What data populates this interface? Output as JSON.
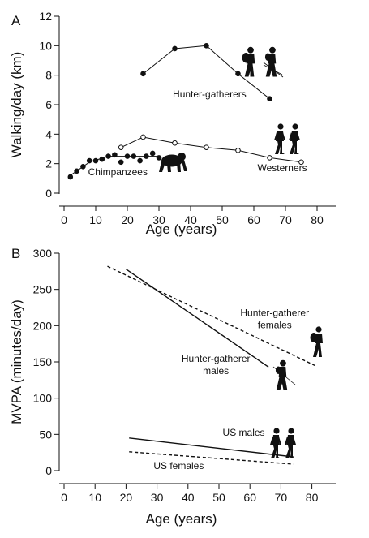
{
  "figure": {
    "panel_a_label": "A",
    "panel_b_label": "B"
  },
  "colors": {
    "ink": "#111111",
    "background": "#ffffff"
  },
  "chart_data": [
    {
      "type": "line",
      "panel": "A",
      "xlabel": "Age (years)",
      "ylabel": "Walking/day (km)",
      "xlim": [
        0,
        85
      ],
      "ylim": [
        0,
        12
      ],
      "xticks": [
        0,
        10,
        20,
        30,
        40,
        50,
        60,
        70,
        80
      ],
      "yticks": [
        0,
        2,
        4,
        6,
        8,
        10,
        12
      ],
      "grid": false,
      "series": [
        {
          "name": "Hunter-gatherers",
          "marker": "filled-circle",
          "line": "solid",
          "points": [
            [
              25,
              8.1
            ],
            [
              35,
              9.8
            ],
            [
              45,
              10.0
            ],
            [
              55,
              8.1
            ],
            [
              65,
              6.4
            ]
          ]
        },
        {
          "name": "Westerners",
          "marker": "open-circle",
          "line": "solid",
          "points": [
            [
              18,
              3.1
            ],
            [
              25,
              3.8
            ],
            [
              35,
              3.4
            ],
            [
              45,
              3.1
            ],
            [
              55,
              2.9
            ],
            [
              65,
              2.4
            ],
            [
              75,
              2.1
            ]
          ]
        },
        {
          "name": "Chimpanzees",
          "marker": "filled-circle",
          "line": "solid",
          "points": [
            [
              2,
              1.1
            ],
            [
              4,
              1.5
            ],
            [
              6,
              1.8
            ],
            [
              8,
              2.2
            ],
            [
              10,
              2.2
            ],
            [
              12,
              2.3
            ],
            [
              14,
              2.5
            ],
            [
              16,
              2.6
            ],
            [
              18,
              2.1
            ],
            [
              20,
              2.5
            ],
            [
              22,
              2.5
            ],
            [
              24,
              2.2
            ],
            [
              26,
              2.5
            ],
            [
              28,
              2.7
            ],
            [
              30,
              2.4
            ]
          ]
        }
      ],
      "trend": {
        "series": "Chimpanzees",
        "points": [
          [
            2,
            1.2
          ],
          [
            8,
            2.1
          ],
          [
            14,
            2.5
          ],
          [
            30,
            2.5
          ]
        ]
      },
      "annotations": [
        {
          "text": "Hunter-gatherers",
          "x": 46,
          "y": 6.5
        },
        {
          "text": "Westerners",
          "x": 69,
          "y": 1.5
        },
        {
          "text": "Chimpanzees",
          "x": 17,
          "y": 1.2
        }
      ]
    },
    {
      "type": "line",
      "panel": "B",
      "xlabel": "Age (years)",
      "ylabel": "MVPA (minutes/day)",
      "xlim": [
        0,
        85
      ],
      "ylim": [
        0,
        300
      ],
      "xticks": [
        0,
        10,
        20,
        30,
        40,
        50,
        60,
        70,
        80
      ],
      "yticks": [
        0,
        50,
        100,
        150,
        200,
        250,
        300
      ],
      "grid": false,
      "series": [
        {
          "name": "Hunter-gatherer males",
          "line": "solid",
          "points": [
            [
              20,
              278
            ],
            [
              66,
              143
            ]
          ]
        },
        {
          "name": "Hunter-gatherer females",
          "line": "dashed",
          "points": [
            [
              14,
              282
            ],
            [
              81,
              145
            ]
          ]
        },
        {
          "name": "US males",
          "line": "solid",
          "points": [
            [
              21,
              45
            ],
            [
              74,
              19
            ]
          ]
        },
        {
          "name": "US females",
          "line": "dashed",
          "points": [
            [
              21,
              26
            ],
            [
              74,
              9
            ]
          ]
        }
      ],
      "annotations": [
        {
          "lines": [
            "Hunter-gatherer",
            "females"
          ],
          "x": 68,
          "y": 213
        },
        {
          "lines": [
            "Hunter-gatherer",
            "males"
          ],
          "x": 49,
          "y": 150
        },
        {
          "lines": [
            "US males"
          ],
          "x": 58,
          "y": 48
        },
        {
          "lines": [
            "US females"
          ],
          "x": 37,
          "y": 2
        }
      ]
    }
  ],
  "icons": [
    "hunter-gatherer-couple-icon",
    "walking-couple-icon",
    "chimpanzee-icon",
    "hunter-gatherer-woman-icon",
    "hunter-gatherer-man-icon",
    "walking-couple-icon"
  ]
}
